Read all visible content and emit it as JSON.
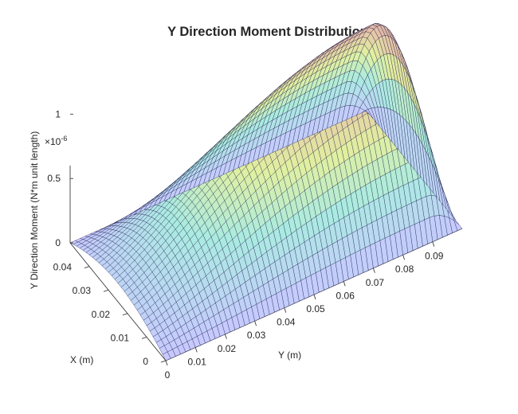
{
  "chart_data": {
    "type": "surface",
    "title": "Y Direction Moment Distribution",
    "xlabel": "X (m)",
    "ylabel": "Y (m)",
    "zlabel": "Y Direction Moment (N*m unit length)",
    "z_exponent_label": "×10",
    "z_exponent_power": "-6",
    "xlim": [
      0,
      0.05
    ],
    "ylim": [
      0,
      0.1
    ],
    "zlim": [
      0,
      1.2
    ],
    "x_ticks": [
      "0",
      "0.01",
      "0.02",
      "0.03",
      "0.04"
    ],
    "y_ticks": [
      "0",
      "0.01",
      "0.02",
      "0.03",
      "0.04",
      "0.05",
      "0.06",
      "0.07",
      "0.08",
      "0.09"
    ],
    "z_ticks": [
      "0",
      "0.5",
      "1"
    ],
    "x_tick_values": [
      0,
      0.01,
      0.02,
      0.03,
      0.04
    ],
    "y_tick_values": [
      0,
      0.01,
      0.02,
      0.03,
      0.04,
      0.05,
      0.06,
      0.07,
      0.08,
      0.09
    ],
    "z_tick_values": [
      0,
      0.5,
      1
    ],
    "peak_value": 1.2,
    "peak_location": {
      "x": 0.025,
      "y": 0.09
    },
    "mesh": {
      "x_lines": 31,
      "y_lines": 61
    },
    "edgecolor": "#000033",
    "colormap_note": "parula-like pastel"
  }
}
